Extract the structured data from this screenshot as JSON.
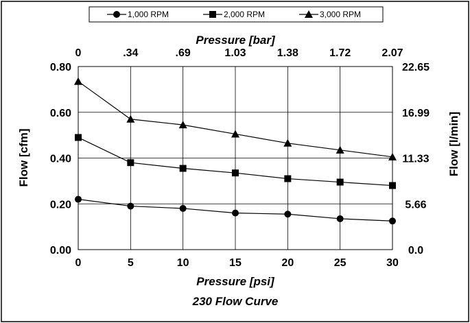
{
  "chart_data": {
    "type": "line",
    "title": "230 Flow Curve",
    "xlabel": "Pressure [psi]",
    "ylabel": "Flow [cfm]",
    "x2label": "Pressure [bar]",
    "y2label": "Flow [l/min]",
    "x": [
      0,
      5,
      10,
      15,
      20,
      25,
      30
    ],
    "xlim": [
      0,
      30
    ],
    "ylim": [
      0,
      0.8
    ],
    "x_ticks": [
      "0",
      "5",
      "10",
      "15",
      "20",
      "25",
      "30"
    ],
    "y_ticks": [
      "0.00",
      "0.20",
      "0.40",
      "0.60",
      "0.80"
    ],
    "x2_ticks": [
      "0",
      ".34",
      ".69",
      "1.03",
      "1.38",
      "1.72",
      "2.07"
    ],
    "y2_ticks": [
      "0.0",
      "5.66",
      "11.33",
      "16.99",
      "22.65"
    ],
    "grid": true,
    "legend_position": "top",
    "series": [
      {
        "name": "1,000 RPM",
        "marker": "circle",
        "values": [
          0.22,
          0.19,
          0.18,
          0.16,
          0.155,
          0.135,
          0.125
        ]
      },
      {
        "name": "2,000 RPM",
        "marker": "square",
        "values": [
          0.49,
          0.38,
          0.355,
          0.335,
          0.31,
          0.295,
          0.28
        ]
      },
      {
        "name": "3,000 RPM",
        "marker": "triangle",
        "values": [
          0.735,
          0.57,
          0.545,
          0.505,
          0.465,
          0.435,
          0.405
        ]
      }
    ]
  }
}
